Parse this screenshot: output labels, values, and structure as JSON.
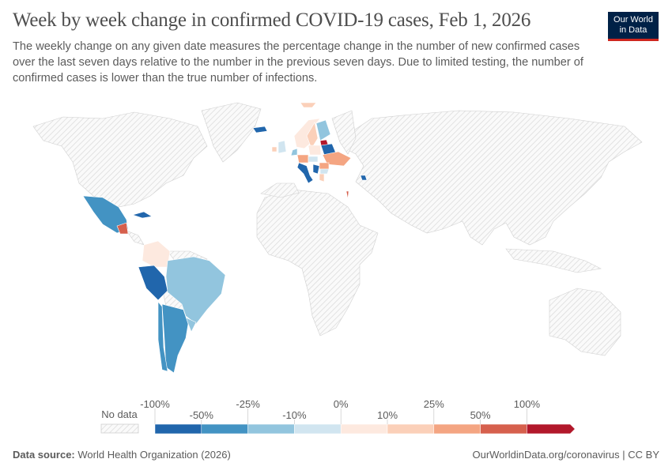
{
  "header": {
    "title": "Week by week change in confirmed COVID-19 cases, Feb 1, 2026",
    "subtitle": "The weekly change on any given date measures the percentage change in the number of new confirmed cases over the last seven days relative to the number in the previous seven days. Due to limited testing, the number of confirmed cases is lower than the true number of infections."
  },
  "logo": {
    "line1": "Our World",
    "line2": "in Data"
  },
  "legend": {
    "no_data_label": "No data",
    "no_data_color": "#e0e0e0",
    "bins": [
      {
        "from": "-100%",
        "to": "-50%",
        "color": "#2166ac"
      },
      {
        "from": "-50%",
        "to": "-25%",
        "color": "#4393c3"
      },
      {
        "from": "-25%",
        "to": "-10%",
        "color": "#92c5de"
      },
      {
        "from": "-10%",
        "to": "0%",
        "color": "#d1e5f0"
      },
      {
        "from": "0%",
        "to": "10%",
        "color": "#fde9df"
      },
      {
        "from": "10%",
        "to": "25%",
        "color": "#fbd0b9"
      },
      {
        "from": "25%",
        "to": "50%",
        "color": "#f4a582"
      },
      {
        "from": "50%",
        "to": "100%",
        "color": "#d6604d"
      },
      {
        "from": "100%",
        "to": "",
        "color": "#b2182b"
      }
    ],
    "ticks": [
      "-100%",
      "-50%",
      "-25%",
      "-10%",
      "0%",
      "10%",
      "25%",
      "50%",
      "100%"
    ]
  },
  "footer": {
    "source_label": "Data source:",
    "source": "World Health Organization (2026)",
    "link": "OurWorldinData.org/coronavirus | CC BY"
  }
}
